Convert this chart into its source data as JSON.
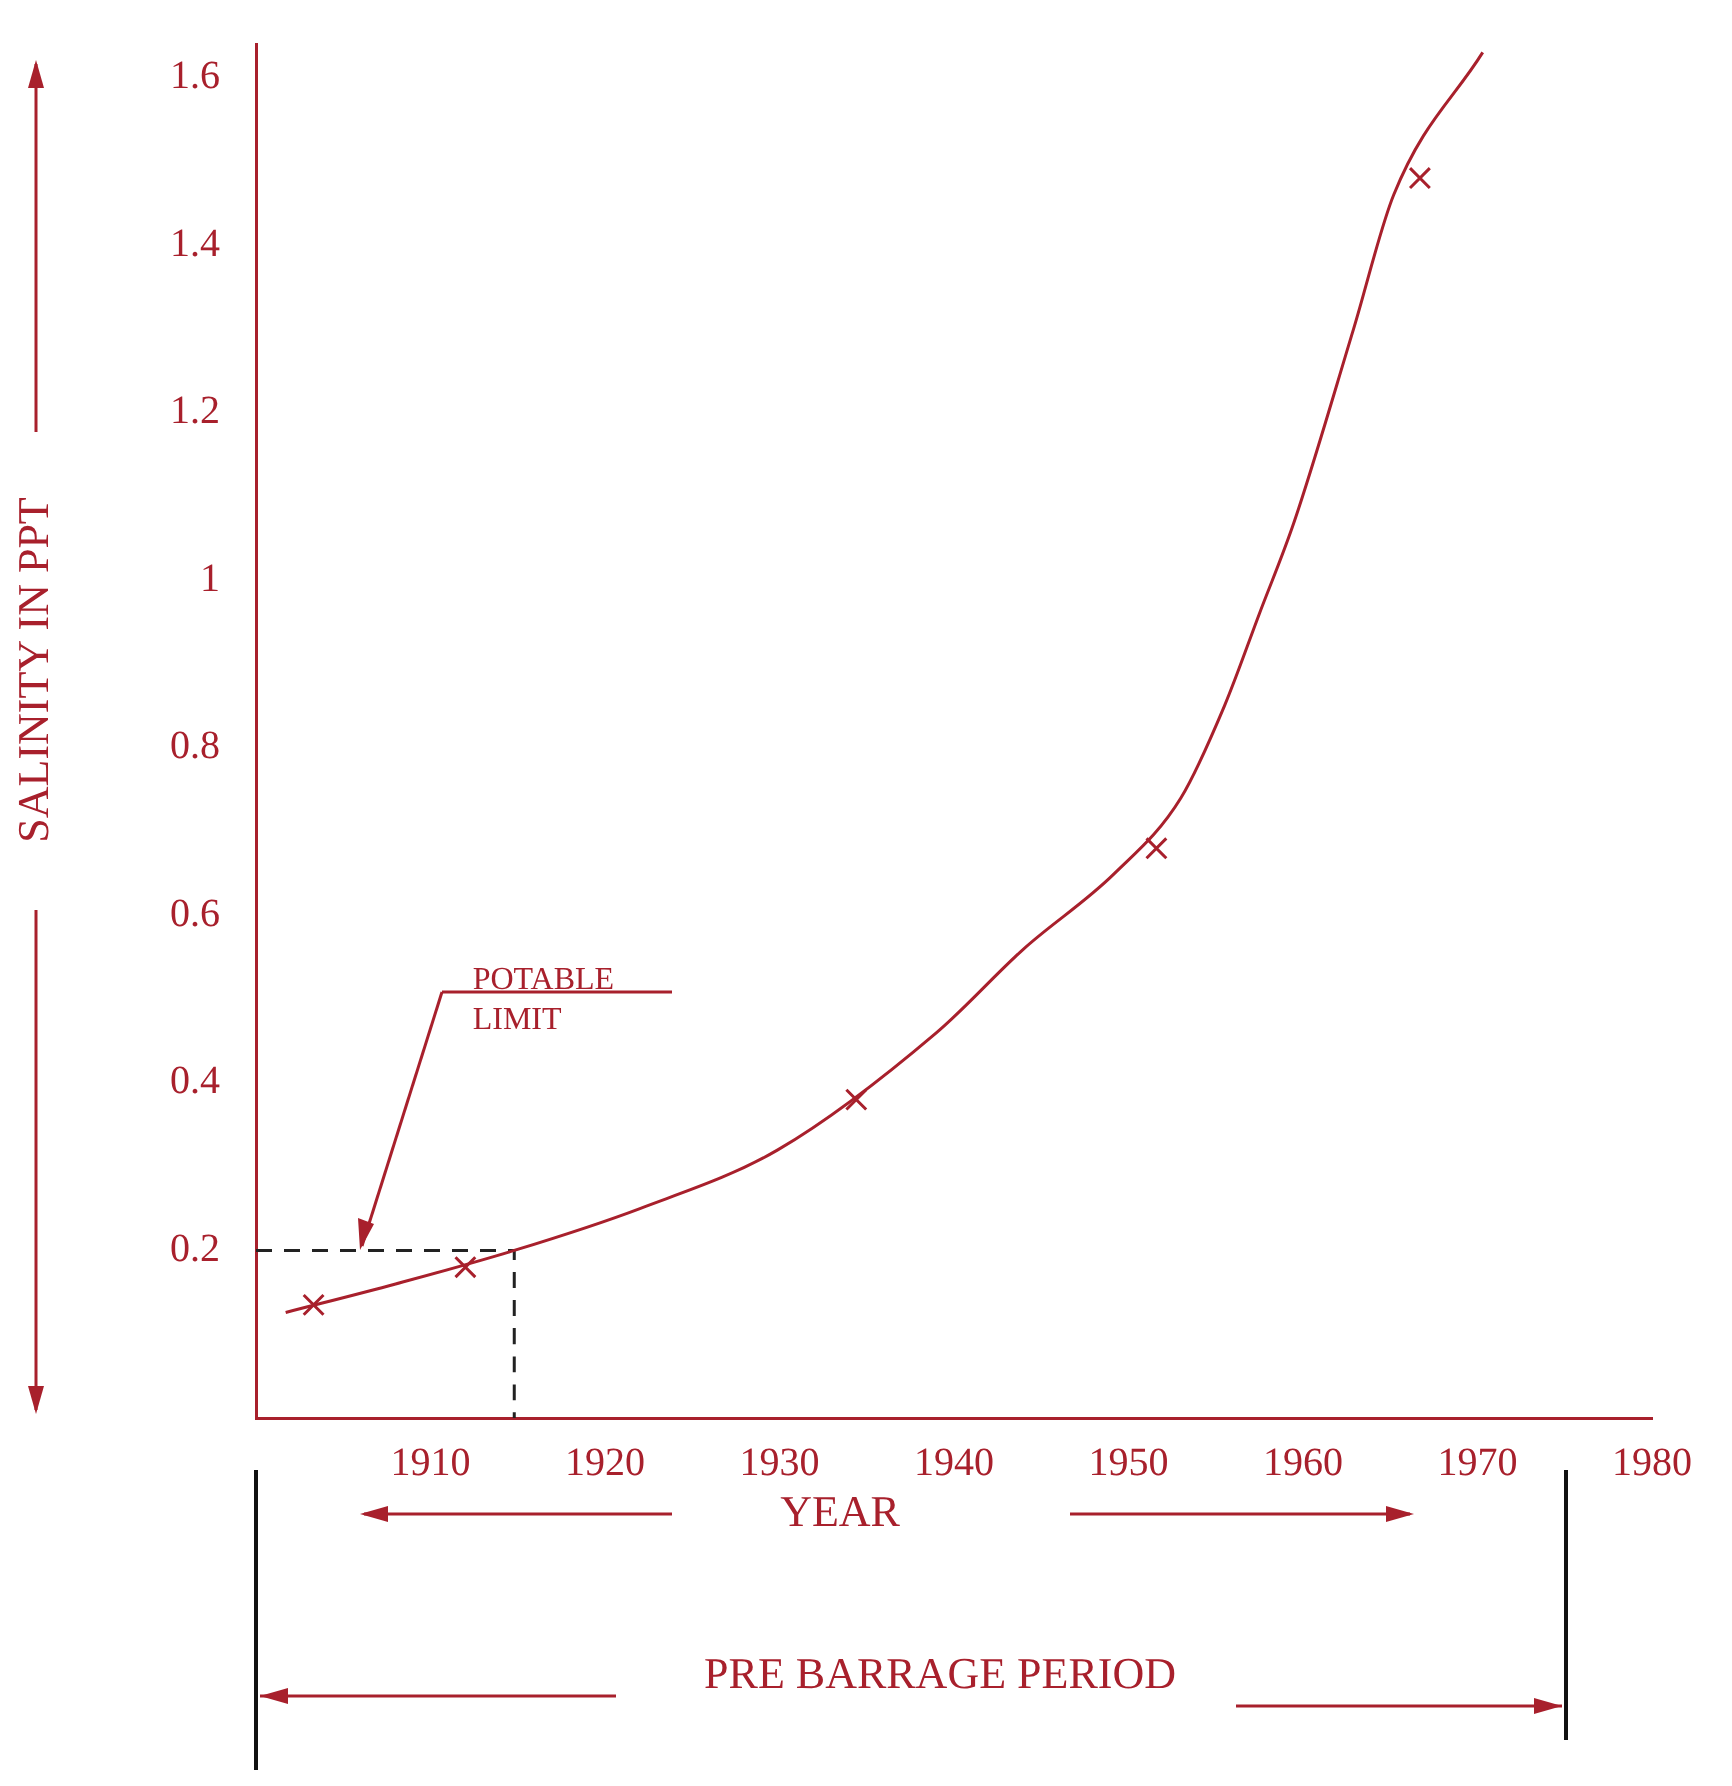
{
  "chart_data": {
    "type": "line",
    "xlabel": "YEAR",
    "ylabel": "SALINITY IN PPT",
    "xlim": [
      1900,
      1980
    ],
    "xticks": [
      1910,
      1920,
      1930,
      1940,
      1950,
      1960,
      1970,
      1980
    ],
    "ylim": [
      0,
      1.64
    ],
    "yticks": [
      0.2,
      0.4,
      0.6,
      0.8,
      1.0,
      1.2,
      1.4,
      1.6
    ],
    "grid": false,
    "legend": false,
    "series": [
      {
        "type": "line",
        "color": "#a8202c",
        "marker": "none",
        "line_style": "solid",
        "x": [
          1901.7,
          1908,
          1914.8,
          1922,
          1929.9,
          1939,
          1944,
          1949.2,
          1953,
          1955.5,
          1957.5,
          1959.5,
          1962.9,
          1965.2,
          1970.3
        ],
        "values": [
          0.126,
          0.16,
          0.2,
          0.25,
          0.32,
          0.46,
          0.56,
          0.65,
          0.74,
          0.85,
          0.96,
          1.07,
          1.3,
          1.46,
          1.63
        ]
      },
      {
        "type": "scatter",
        "color": "#a8202c",
        "marker": "cross",
        "x": [
          1903.3,
          1912,
          1934.4,
          1951.6,
          1966.7
        ],
        "values": [
          0.135,
          0.18,
          0.38,
          0.68,
          1.48
        ]
      },
      {
        "type": "line",
        "color": "#222222",
        "marker": "none",
        "line_style": "dashed",
        "x": [
          1900,
          1914.8,
          1914.8
        ],
        "values": [
          0.2,
          0.2,
          0
        ]
      }
    ],
    "annotations": [
      {
        "text": "POTABLE LIMIT",
        "x": 1906,
        "y": 0.2
      },
      "PRE BARRAGE PERIOD"
    ]
  }
}
